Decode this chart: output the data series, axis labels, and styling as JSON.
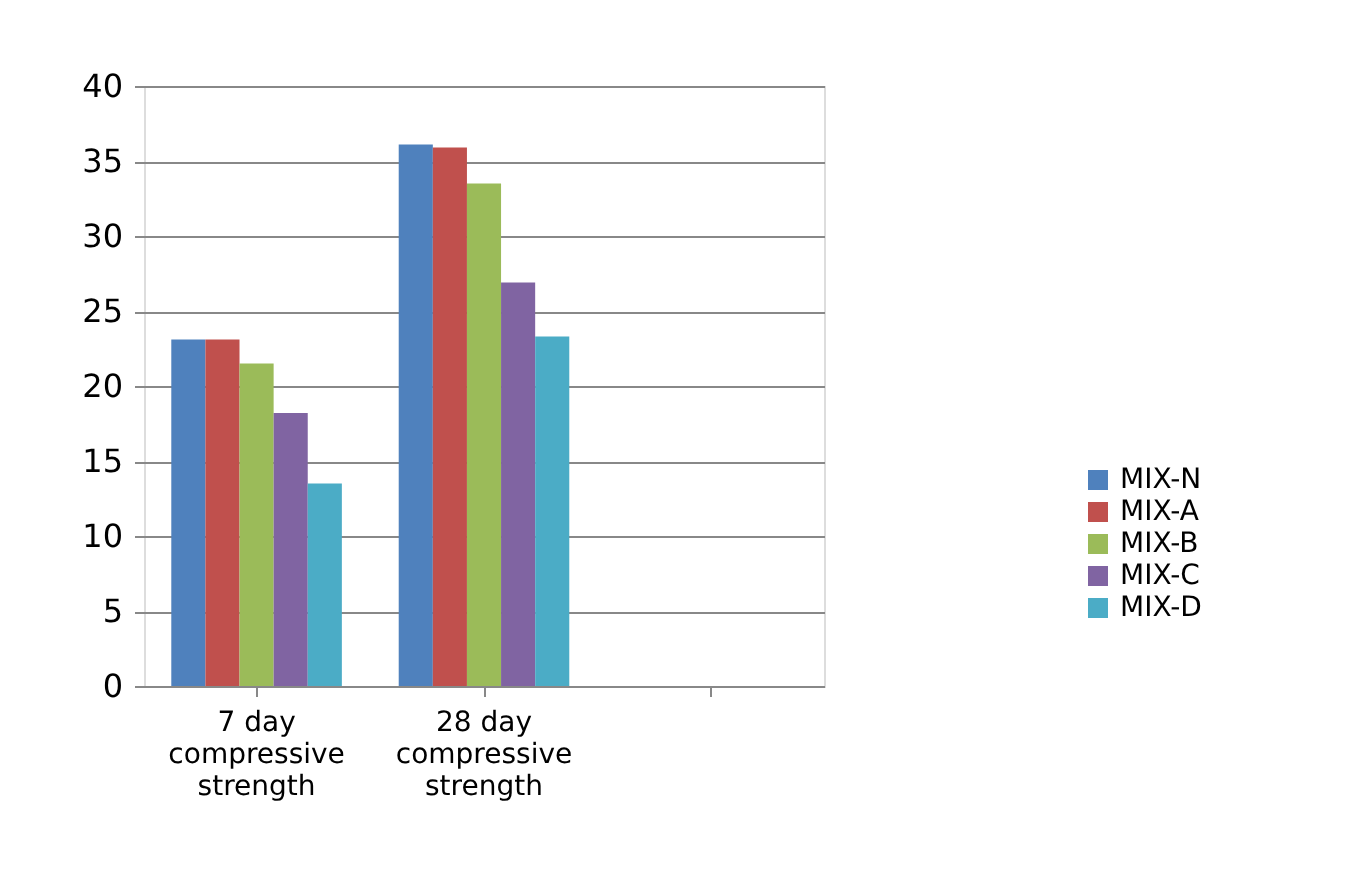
{
  "chart_data": {
    "type": "bar",
    "categories": [
      "7 day compressive strength",
      "28 day compressive strength",
      null
    ],
    "series": [
      {
        "name": "MIX-N",
        "color": "#4f81bd",
        "values": [
          23.1,
          36.1,
          null
        ]
      },
      {
        "name": "MIX-A",
        "color": "#c0504d",
        "values": [
          23.1,
          35.9,
          null
        ]
      },
      {
        "name": "MIX-B",
        "color": "#9bbb59",
        "values": [
          21.5,
          33.5,
          null
        ]
      },
      {
        "name": "MIX-C",
        "color": "#8064a2",
        "values": [
          18.2,
          26.9,
          null
        ]
      },
      {
        "name": "MIX-D",
        "color": "#4bacc6",
        "values": [
          13.5,
          23.3,
          null
        ]
      }
    ],
    "ylim": [
      0,
      40
    ],
    "yticks": [
      0,
      5,
      10,
      15,
      20,
      25,
      30,
      35,
      40
    ],
    "grid": "y",
    "legend": "bottom right"
  }
}
